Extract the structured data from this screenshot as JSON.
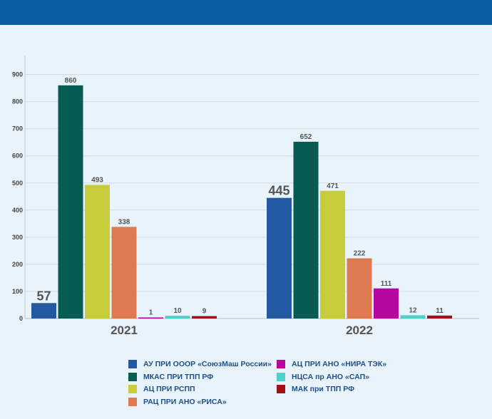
{
  "chart_data": {
    "type": "bar",
    "categories": [
      "2021",
      "2022"
    ],
    "ylim": [
      0,
      950
    ],
    "yticks": [
      0,
      100,
      200,
      300,
      400,
      500,
      600,
      700,
      800,
      900
    ],
    "grid": true,
    "legend_position": "bottom",
    "title": "",
    "xlabel": "",
    "ylabel": "",
    "series": [
      {
        "name": "АУ ПРИ ОООР «СоюзМаш России»",
        "color": "#2358a3",
        "values": [
          57,
          445
        ],
        "label_style": "big"
      },
      {
        "name": "МКАС ПРИ ТПП РФ",
        "color": "#065b52",
        "values": [
          860,
          652
        ],
        "label_style": "small"
      },
      {
        "name": "АЦ ПРИ РСПП",
        "color": "#c6cc3a",
        "values": [
          493,
          471
        ],
        "label_style": "small"
      },
      {
        "name": "РАЦ ПРИ АНО «РИСА»",
        "color": "#df7a50",
        "values": [
          338,
          222
        ],
        "label_style": "small"
      },
      {
        "name": "АЦ ПРИ АНО «НИРА ТЭК»",
        "color": "#b5069e",
        "values": [
          1,
          111
        ],
        "label_style": "small"
      },
      {
        "name": "НЦСА пр АНО «САП»",
        "color": "#4fd0cb",
        "values": [
          10,
          12
        ],
        "label_style": "small"
      },
      {
        "name": "МАК при ТПП РФ",
        "color": "#a20f16",
        "values": [
          9,
          11
        ],
        "label_style": "small"
      }
    ]
  }
}
